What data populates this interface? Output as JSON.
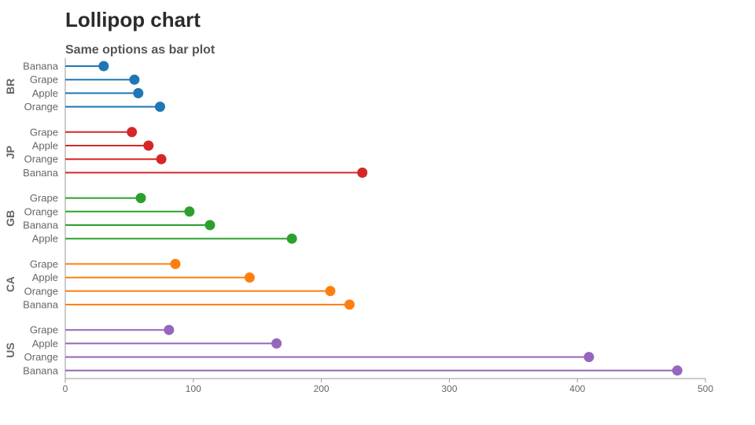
{
  "chart_data": {
    "type": "lollipop",
    "title": "Lollipop chart",
    "subtitle": "Same options as bar plot",
    "xlabel": "",
    "ylabel": "",
    "xlim": [
      0,
      500
    ],
    "x_ticks": [
      "0",
      "100",
      "200",
      "300",
      "400",
      "500"
    ],
    "grid": false,
    "legend": "none",
    "groups": [
      {
        "name": "BR",
        "color": "#1f77b4",
        "items": [
          {
            "label": "Banana",
            "value": 30
          },
          {
            "label": "Grape",
            "value": 54
          },
          {
            "label": "Apple",
            "value": 57
          },
          {
            "label": "Orange",
            "value": 74
          }
        ]
      },
      {
        "name": "JP",
        "color": "#d62728",
        "items": [
          {
            "label": "Grape",
            "value": 52
          },
          {
            "label": "Apple",
            "value": 65
          },
          {
            "label": "Orange",
            "value": 75
          },
          {
            "label": "Banana",
            "value": 232
          }
        ]
      },
      {
        "name": "GB",
        "color": "#2ca02c",
        "items": [
          {
            "label": "Grape",
            "value": 59
          },
          {
            "label": "Orange",
            "value": 97
          },
          {
            "label": "Banana",
            "value": 113
          },
          {
            "label": "Apple",
            "value": 177
          }
        ]
      },
      {
        "name": "CA",
        "color": "#ff7f0e",
        "items": [
          {
            "label": "Grape",
            "value": 86
          },
          {
            "label": "Apple",
            "value": 144
          },
          {
            "label": "Orange",
            "value": 207
          },
          {
            "label": "Banana",
            "value": 222
          }
        ]
      },
      {
        "name": "US",
        "color": "#9467bd",
        "items": [
          {
            "label": "Grape",
            "value": 81
          },
          {
            "label": "Apple",
            "value": 165
          },
          {
            "label": "Orange",
            "value": 409
          },
          {
            "label": "Banana",
            "value": 478
          }
        ]
      }
    ]
  }
}
